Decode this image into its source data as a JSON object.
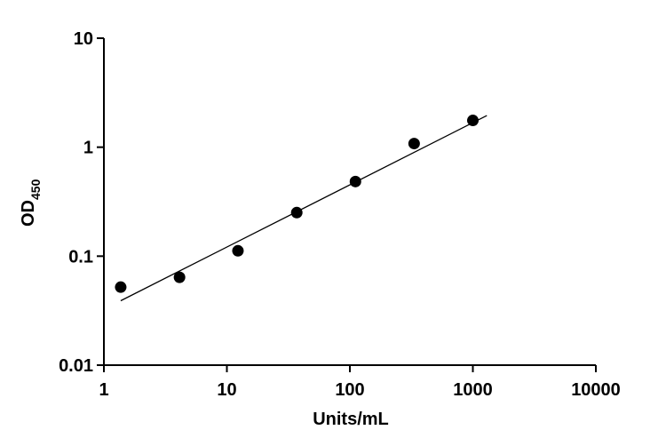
{
  "chart_data": {
    "type": "scatter",
    "x_label": "Units/mL",
    "y_label": "OD",
    "y_label_subscript": "450",
    "x": [
      1.37,
      4.12,
      12.3,
      37.0,
      111,
      333,
      1000
    ],
    "values": [
      0.052,
      0.064,
      0.112,
      0.251,
      0.484,
      1.08,
      1.76
    ],
    "color": "#000000",
    "fit": {
      "x": [
        1.37,
        1300
      ],
      "values": [
        0.039,
        1.95
      ]
    },
    "xlim": [
      1,
      10000
    ],
    "xticks": [
      1,
      10,
      100,
      1000,
      10000
    ],
    "ylim": [
      0.01,
      10
    ],
    "yticks": [
      0.01,
      0.1,
      1,
      10
    ],
    "xlog": true,
    "ylog": true,
    "grid": false
  }
}
